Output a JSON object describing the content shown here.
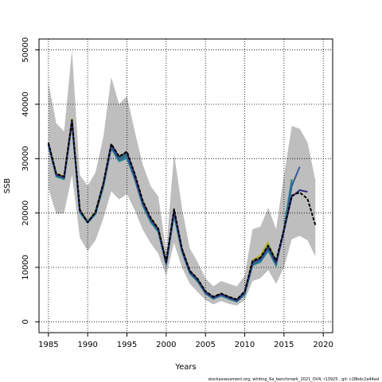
{
  "chart_data": {
    "type": "line",
    "xlabel": "Years",
    "ylabel": "SSB",
    "xlim": [
      1983.8,
      2021.2
    ],
    "ylim": [
      -2000,
      52000
    ],
    "x_ticks": [
      1985,
      1990,
      1995,
      2000,
      2005,
      2010,
      2015,
      2020
    ],
    "y_ticks": [
      0,
      10000,
      20000,
      30000,
      40000,
      50000
    ],
    "grid": true,
    "footnote": "stockassessment.org, whiting_6a_benchmark_2021_OV4, r13925 , git: c28bdc2a44ad",
    "colors": {
      "ci_band": "#bebebe",
      "base": "#000000",
      "peels": [
        "#2e2a7a",
        "#3b5998",
        "#1a8a8a",
        "#2a9a5a",
        "#7ab02a",
        "#c8a832",
        "#6fc4e8"
      ]
    },
    "confidence_band": {
      "x": [
        1985,
        1986,
        1987,
        1988,
        1989,
        1990,
        1991,
        1992,
        1993,
        1994,
        1995,
        1996,
        1997,
        1998,
        1999,
        2000,
        2001,
        2002,
        2003,
        2004,
        2005,
        2006,
        2007,
        2008,
        2009,
        2010,
        2011,
        2012,
        2013,
        2014,
        2015,
        2016,
        2017,
        2018,
        2019
      ],
      "upper": [
        44000,
        36500,
        35000,
        50000,
        27000,
        25000,
        27500,
        34000,
        45000,
        40000,
        41500,
        35000,
        29000,
        25000,
        23000,
        13000,
        31000,
        21000,
        13500,
        11000,
        8000,
        6500,
        7500,
        7000,
        6500,
        8500,
        17000,
        17500,
        21000,
        17000,
        27000,
        36000,
        35500,
        33000,
        26000
      ],
      "lower": [
        24500,
        19800,
        20000,
        27000,
        15500,
        13000,
        15000,
        19000,
        24000,
        22500,
        23500,
        20500,
        17000,
        14500,
        12500,
        8500,
        14500,
        10000,
        7000,
        5500,
        4000,
        3200,
        3800,
        3300,
        3000,
        4000,
        7500,
        8000,
        9500,
        7000,
        10000,
        15200,
        15800,
        15000,
        12000
      ]
    },
    "series": [
      {
        "x": [
          1985,
          1986,
          1987,
          1988,
          1989,
          1990,
          1991,
          1992,
          1993,
          1994,
          1995,
          1996,
          1997,
          1998,
          1999,
          2000,
          2001,
          2002,
          2003,
          2004,
          2005,
          2006,
          2007,
          2008,
          2009,
          2010,
          2011,
          2012,
          2013,
          2014,
          2015,
          2016,
          2017,
          2018,
          2019
        ],
        "values": [
          32900,
          27200,
          26700,
          37100,
          20600,
          18300,
          20200,
          25500,
          32700,
          30400,
          31300,
          27200,
          22300,
          19200,
          17100,
          11000,
          20700,
          13500,
          9400,
          7900,
          5600,
          4600,
          5200,
          4600,
          4100,
          5600,
          11200,
          11800,
          14000,
          11200,
          17000,
          23200,
          23800,
          22600,
          17800
        ]
      },
      {
        "x": [
          1985,
          1986,
          1987,
          1988,
          1989,
          1990,
          1991,
          1992,
          1993,
          1994,
          1995,
          1996,
          1997,
          1998,
          1999,
          2000,
          2001,
          2002,
          2003,
          2004,
          2005,
          2006,
          2007,
          2008,
          2009,
          2010,
          2011,
          2012,
          2013,
          2014,
          2015,
          2016,
          2017,
          2018
        ],
        "values": [
          32800,
          27100,
          26600,
          37000,
          20500,
          18300,
          20100,
          25400,
          32600,
          30300,
          31100,
          27000,
          22100,
          19000,
          17000,
          10900,
          20500,
          13400,
          9300,
          7800,
          5500,
          4500,
          5100,
          4500,
          4000,
          5500,
          11000,
          11600,
          13800,
          11000,
          16800,
          23000,
          24200,
          23900
        ]
      },
      {
        "x": [
          1985,
          1986,
          1987,
          1988,
          1989,
          1990,
          1991,
          1992,
          1993,
          1994,
          1995,
          1996,
          1997,
          1998,
          1999,
          2000,
          2001,
          2002,
          2003,
          2004,
          2005,
          2006,
          2007,
          2008,
          2009,
          2010,
          2011,
          2012,
          2013,
          2014,
          2015,
          2016,
          2017
        ],
        "values": [
          32600,
          26900,
          26400,
          36800,
          20300,
          18400,
          20000,
          25100,
          32100,
          29800,
          30500,
          26400,
          21700,
          18700,
          16700,
          10700,
          20000,
          13100,
          9100,
          7600,
          5300,
          4300,
          4900,
          4300,
          3800,
          5200,
          10600,
          11300,
          13400,
          10600,
          16600,
          25000,
          28500
        ]
      },
      {
        "x": [
          1985,
          1986,
          1987,
          1988,
          1989,
          1990,
          1991,
          1992,
          1993,
          1994,
          1995,
          1996,
          1997,
          1998,
          1999,
          2000,
          2001,
          2002,
          2003,
          2004,
          2005,
          2006,
          2007,
          2008,
          2009,
          2010,
          2011,
          2012,
          2013,
          2014,
          2015,
          2016
        ],
        "values": [
          32400,
          26700,
          26200,
          36500,
          20100,
          18200,
          19800,
          24800,
          31900,
          29500,
          30100,
          26200,
          21400,
          18400,
          16500,
          10500,
          19600,
          12900,
          8900,
          7400,
          5200,
          4200,
          4800,
          4200,
          3700,
          5000,
          10400,
          11000,
          13100,
          10300,
          17200,
          26200
        ]
      },
      {
        "x": [
          1985,
          1986,
          1987,
          1988,
          1989,
          1990,
          1991,
          1992,
          1993,
          1994,
          1995,
          1996,
          1997,
          1998,
          1999,
          2000,
          2001,
          2002,
          2003,
          2004,
          2005,
          2006,
          2007,
          2008,
          2009,
          2010,
          2011,
          2012,
          2013,
          2014,
          2015
        ],
        "values": [
          32700,
          27000,
          26500,
          36900,
          20400,
          18300,
          20100,
          25300,
          32400,
          30000,
          30800,
          26800,
          21900,
          18900,
          16900,
          10800,
          20200,
          13200,
          9200,
          7700,
          5400,
          4400,
          5000,
          4400,
          3900,
          5300,
          10800,
          11500,
          13600,
          10700,
          16900
        ]
      },
      {
        "x": [
          1985,
          1986,
          1987,
          1988,
          1989,
          1990,
          1991,
          1992,
          1993,
          1994,
          1995,
          1996,
          1997,
          1998,
          1999,
          2000,
          2001,
          2002,
          2003,
          2004,
          2005,
          2006,
          2007,
          2008,
          2009,
          2010,
          2011,
          2012,
          2013,
          2014
        ],
        "values": [
          32800,
          27100,
          26600,
          37000,
          20500,
          18300,
          20200,
          25400,
          32500,
          30200,
          31000,
          26900,
          22000,
          19000,
          17000,
          10900,
          20300,
          13300,
          9300,
          7800,
          5500,
          4500,
          5100,
          4500,
          4000,
          5400,
          11100,
          11900,
          14300,
          11300
        ]
      },
      {
        "x": [
          1985,
          1986,
          1987,
          1988,
          1989,
          1990,
          1991,
          1992,
          1993,
          1994,
          1995,
          1996,
          1997,
          1998,
          1999,
          2000,
          2001,
          2002,
          2003,
          2004,
          2005,
          2006,
          2007,
          2008,
          2009,
          2010,
          2011,
          2012,
          2013
        ],
        "values": [
          32900,
          27300,
          26800,
          37300,
          20700,
          18400,
          20300,
          25600,
          32600,
          30300,
          31200,
          27100,
          22200,
          19200,
          17200,
          11000,
          20500,
          13400,
          9400,
          7900,
          5600,
          4600,
          5200,
          4600,
          4100,
          5500,
          11300,
          12200,
          14700
        ]
      }
    ]
  }
}
